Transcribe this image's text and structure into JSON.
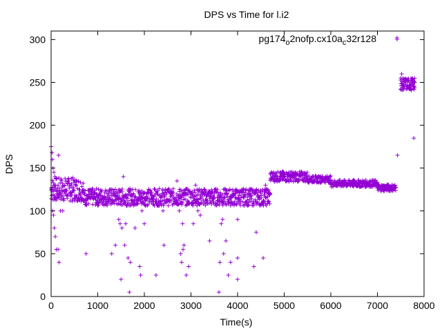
{
  "chart_data": {
    "type": "scatter",
    "title": "DPS vs Time for l.i2",
    "xlabel": "Time(s)",
    "ylabel": "DPS",
    "xlim": [
      0,
      8000
    ],
    "ylim": [
      0,
      310
    ],
    "xticks": [
      0,
      1000,
      2000,
      3000,
      4000,
      5000,
      6000,
      7000,
      8000
    ],
    "yticks": [
      0,
      50,
      100,
      150,
      200,
      250,
      300
    ],
    "grid": false,
    "legend_position": "top-right",
    "marker": "plus",
    "color": "#9400d3",
    "series": [
      {
        "name": "pg174_o2nofp.cx10a_c32r128",
        "legend": {
          "base": "pg174",
          "sub1": "o",
          "mid": "2nofp.cx10a",
          "sub2": "c",
          "end": "32r128"
        },
        "clusters": [
          {
            "x_start": 0,
            "x_end": 700,
            "step": 15,
            "y_mid": 125,
            "y_spread": 14
          },
          {
            "x_start": 700,
            "x_end": 4700,
            "step": 15,
            "y_mid": 116,
            "y_spread": 10
          },
          {
            "x_start": 4700,
            "x_end": 5500,
            "step": 15,
            "y_mid": 140,
            "y_spread": 6
          },
          {
            "x_start": 5500,
            "x_end": 6000,
            "step": 15,
            "y_mid": 137,
            "y_spread": 4
          },
          {
            "x_start": 6000,
            "x_end": 7000,
            "step": 15,
            "y_mid": 132,
            "y_spread": 4
          },
          {
            "x_start": 7000,
            "x_end": 7400,
            "step": 15,
            "y_mid": 127,
            "y_spread": 4
          },
          {
            "x_start": 7500,
            "x_end": 7800,
            "step": 12,
            "y_mid": 248,
            "y_spread": 7
          }
        ],
        "points": [
          [
            0,
            175
          ],
          [
            20,
            168
          ],
          [
            30,
            160
          ],
          [
            40,
            150
          ],
          [
            60,
            145
          ],
          [
            80,
            140
          ],
          [
            100,
            130
          ],
          [
            120,
            120
          ],
          [
            30,
            100
          ],
          [
            50,
            95
          ],
          [
            70,
            80
          ],
          [
            90,
            70
          ],
          [
            110,
            55
          ],
          [
            150,
            55
          ],
          [
            170,
            40
          ],
          [
            160,
            165
          ],
          [
            200,
            100
          ],
          [
            250,
            100
          ],
          [
            750,
            50
          ],
          [
            1300,
            50
          ],
          [
            1380,
            60
          ],
          [
            1450,
            90
          ],
          [
            1480,
            85
          ],
          [
            1500,
            20
          ],
          [
            1520,
            80
          ],
          [
            1550,
            140
          ],
          [
            1580,
            60
          ],
          [
            1600,
            85
          ],
          [
            1650,
            45
          ],
          [
            1680,
            5
          ],
          [
            1700,
            40
          ],
          [
            1750,
            110
          ],
          [
            1800,
            80
          ],
          [
            1900,
            35
          ],
          [
            1920,
            25
          ],
          [
            1950,
            100
          ],
          [
            2000,
            85
          ],
          [
            2250,
            25
          ],
          [
            2400,
            100
          ],
          [
            2420,
            60
          ],
          [
            2700,
            135
          ],
          [
            2750,
            100
          ],
          [
            2780,
            50
          ],
          [
            2800,
            40
          ],
          [
            2830,
            55
          ],
          [
            2850,
            60
          ],
          [
            2900,
            25
          ],
          [
            2950,
            35
          ],
          [
            2820,
            85
          ],
          [
            3050,
            85
          ],
          [
            3100,
            130
          ],
          [
            3150,
            100
          ],
          [
            3200,
            95
          ],
          [
            3400,
            65
          ],
          [
            3600,
            5
          ],
          [
            3620,
            40
          ],
          [
            3650,
            85
          ],
          [
            3680,
            90
          ],
          [
            3700,
            50
          ],
          [
            3750,
            65
          ],
          [
            3800,
            25
          ],
          [
            3850,
            40
          ],
          [
            4000,
            90
          ],
          [
            4000,
            45
          ],
          [
            4000,
            20
          ],
          [
            4350,
            35
          ],
          [
            4400,
            75
          ],
          [
            4550,
            45
          ],
          [
            4600,
            130
          ],
          [
            4650,
            125
          ],
          [
            4700,
            120
          ],
          [
            7420,
            302
          ],
          [
            7430,
            165
          ],
          [
            7500,
            255
          ],
          [
            7520,
            260
          ],
          [
            7780,
            185
          ]
        ]
      }
    ]
  }
}
